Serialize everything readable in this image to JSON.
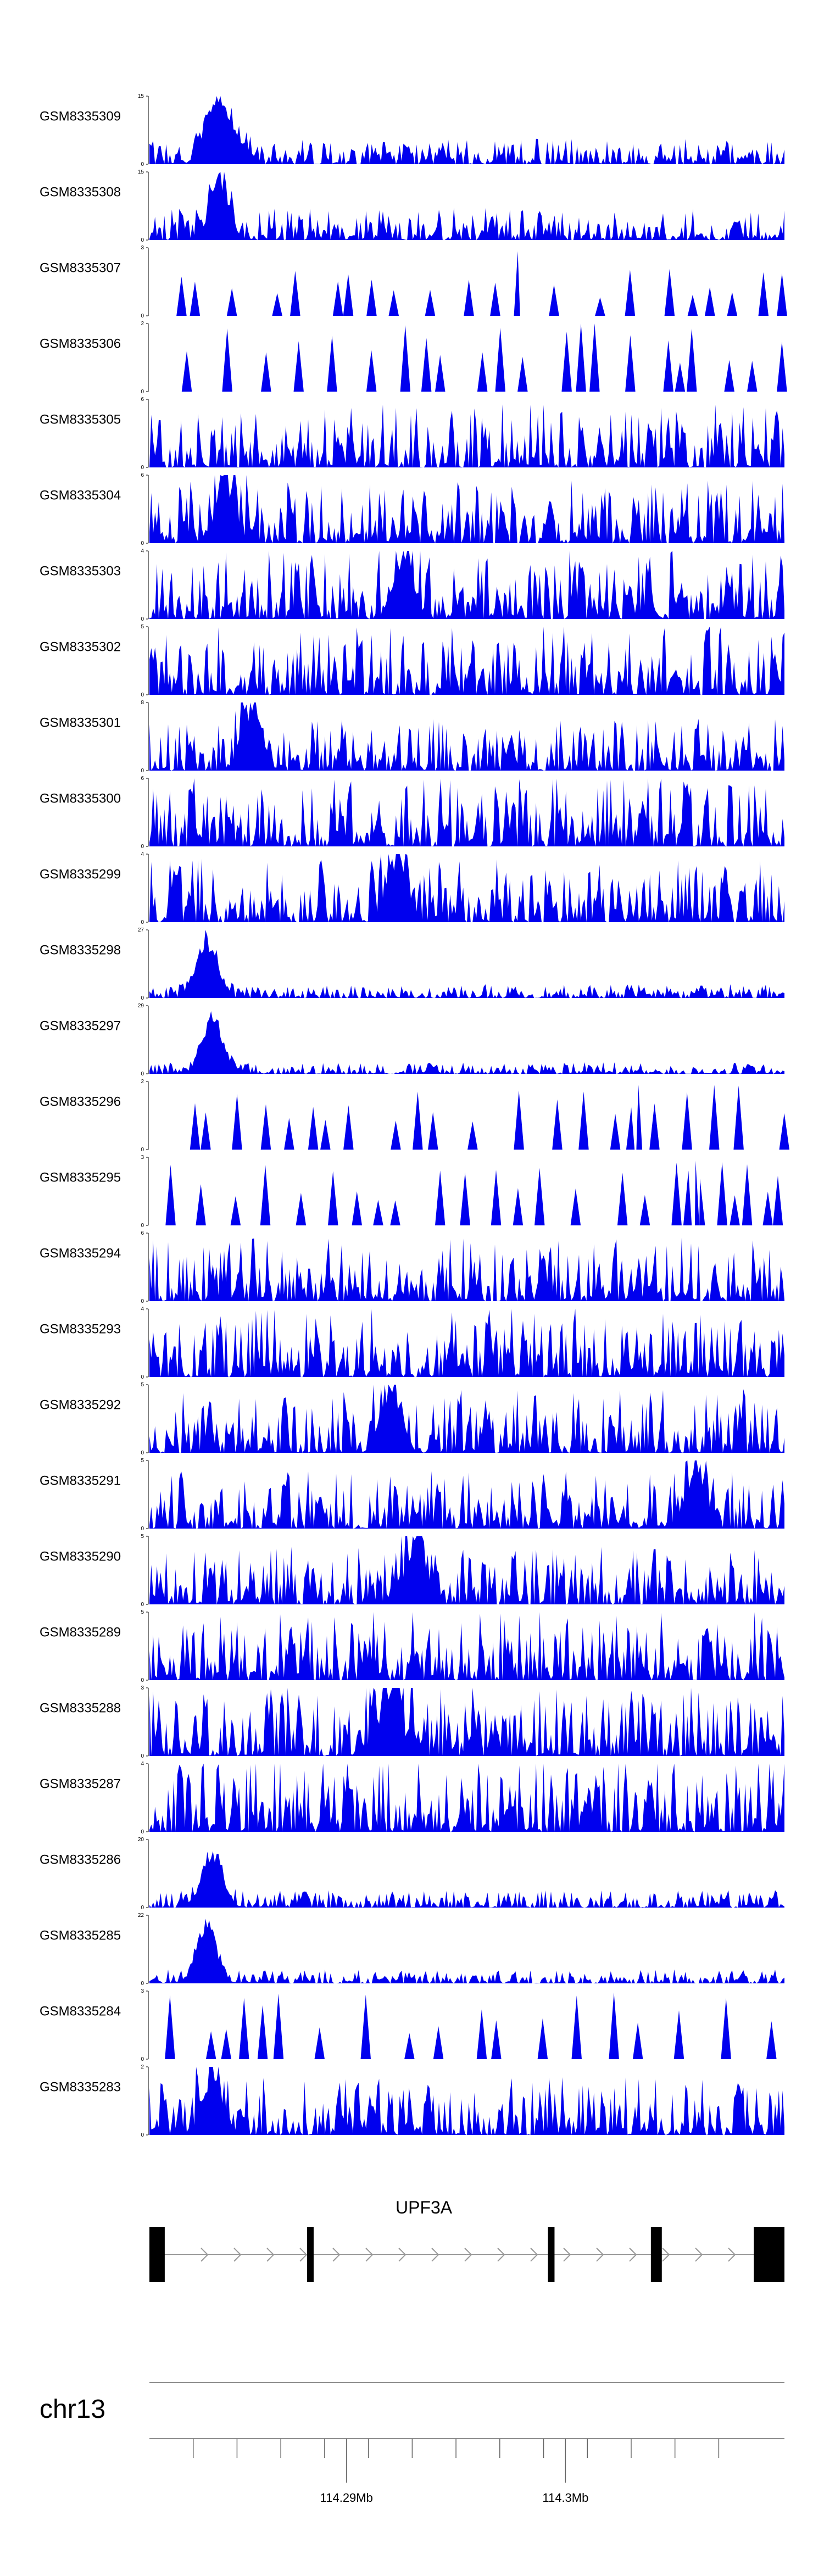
{
  "chart_data": {
    "type": "area",
    "fill_color": "#0000ee",
    "chromosome": "chr13",
    "gene": {
      "name": "UPF3A",
      "strand": "+",
      "start_pos": 114281000,
      "end_pos": 114310000,
      "exons": [
        [
          114281000,
          114281700
        ],
        [
          114288200,
          114288500
        ],
        [
          114299200,
          114299500
        ],
        [
          114303900,
          114304400
        ],
        [
          114308600,
          114310000
        ]
      ]
    },
    "x_range": [
      114281000,
      114310000
    ],
    "x_ticks": [
      {
        "pos": 114290000,
        "label": "114.29Mb"
      },
      {
        "pos": 114300000,
        "label": "114.3Mb"
      }
    ],
    "x_minor_ticks": [
      114283000,
      114285000,
      114287000,
      114289000,
      114291000,
      114293000,
      114295000,
      114297000,
      114299000,
      114301000,
      114303000,
      114305000,
      114307000
    ],
    "tracks": [
      {
        "name": "GSM8335309",
        "ymax": "15",
        "ymin": "0",
        "sparse": false,
        "peaks": [
          [
            0.1,
            0.85
          ],
          [
            0.13,
            0.5
          ]
        ],
        "base": 0.22,
        "seed": 11
      },
      {
        "name": "GSM8335308",
        "ymax": "15",
        "ymin": "0",
        "sparse": false,
        "peaks": [
          [
            0.11,
            0.8
          ]
        ],
        "base": 0.28,
        "seed": 12
      },
      {
        "name": "GSM8335307",
        "ymax": "3",
        "ymin": "0",
        "sparse": true,
        "peaks": [
          [
            0.58,
            0.95
          ]
        ],
        "base": 0.4,
        "seed": 13
      },
      {
        "name": "GSM8335306",
        "ymax": "2",
        "ymin": "0",
        "sparse": true,
        "peaks": [],
        "base": 0.6,
        "seed": 14
      },
      {
        "name": "GSM8335305",
        "ymax": "6",
        "ymin": "0",
        "sparse": false,
        "peaks": [],
        "base": 0.55,
        "seed": 15
      },
      {
        "name": "GSM8335304",
        "ymax": "6",
        "ymin": "0",
        "sparse": false,
        "peaks": [
          [
            0.12,
            0.85
          ]
        ],
        "base": 0.55,
        "seed": 16
      },
      {
        "name": "GSM8335303",
        "ymax": "4",
        "ymin": "0",
        "sparse": false,
        "peaks": [
          [
            0.4,
            0.9
          ]
        ],
        "base": 0.6,
        "seed": 17
      },
      {
        "name": "GSM8335302",
        "ymax": "5",
        "ymin": "0",
        "sparse": false,
        "peaks": [],
        "base": 0.6,
        "seed": 18
      },
      {
        "name": "GSM8335301",
        "ymax": "8",
        "ymin": "0",
        "sparse": false,
        "peaks": [
          [
            0.16,
            0.95
          ]
        ],
        "base": 0.45,
        "seed": 19
      },
      {
        "name": "GSM8335300",
        "ymax": "6",
        "ymin": "0",
        "sparse": false,
        "peaks": [],
        "base": 0.6,
        "seed": 20
      },
      {
        "name": "GSM8335299",
        "ymax": "4",
        "ymin": "0",
        "sparse": false,
        "peaks": [
          [
            0.39,
            0.95
          ]
        ],
        "base": 0.55,
        "seed": 21
      },
      {
        "name": "GSM8335298",
        "ymax": "27",
        "ymin": "0",
        "sparse": false,
        "peaks": [
          [
            0.09,
            0.9
          ]
        ],
        "base": 0.12,
        "seed": 22
      },
      {
        "name": "GSM8335297",
        "ymax": "29",
        "ymin": "0",
        "sparse": false,
        "peaks": [
          [
            0.1,
            0.9
          ]
        ],
        "base": 0.1,
        "seed": 23
      },
      {
        "name": "GSM8335296",
        "ymax": "2",
        "ymin": "0",
        "sparse": true,
        "peaks": [
          [
            0.77,
            0.95
          ]
        ],
        "base": 0.55,
        "seed": 24
      },
      {
        "name": "GSM8335295",
        "ymax": "3",
        "ymin": "0",
        "sparse": true,
        "peaks": [
          [
            0.86,
            0.95
          ]
        ],
        "base": 0.55,
        "seed": 25
      },
      {
        "name": "GSM8335294",
        "ymax": "6",
        "ymin": "0",
        "sparse": false,
        "peaks": [],
        "base": 0.55,
        "seed": 26
      },
      {
        "name": "GSM8335293",
        "ymax": "4",
        "ymin": "0",
        "sparse": false,
        "peaks": [],
        "base": 0.6,
        "seed": 27
      },
      {
        "name": "GSM8335292",
        "ymax": "5",
        "ymin": "0",
        "sparse": false,
        "peaks": [
          [
            0.38,
            0.95
          ]
        ],
        "base": 0.55,
        "seed": 28
      },
      {
        "name": "GSM8335291",
        "ymax": "5",
        "ymin": "0",
        "sparse": false,
        "peaks": [
          [
            0.86,
            0.95
          ]
        ],
        "base": 0.5,
        "seed": 29
      },
      {
        "name": "GSM8335290",
        "ymax": "5",
        "ymin": "0",
        "sparse": false,
        "peaks": [
          [
            0.42,
            0.95
          ]
        ],
        "base": 0.5,
        "seed": 30
      },
      {
        "name": "GSM8335289",
        "ymax": "5",
        "ymin": "0",
        "sparse": false,
        "peaks": [],
        "base": 0.6,
        "seed": 31
      },
      {
        "name": "GSM8335288",
        "ymax": "3",
        "ymin": "0",
        "sparse": false,
        "peaks": [
          [
            0.38,
            0.95
          ]
        ],
        "base": 0.6,
        "seed": 32
      },
      {
        "name": "GSM8335287",
        "ymax": "4",
        "ymin": "0",
        "sparse": false,
        "peaks": [],
        "base": 0.65,
        "seed": 33
      },
      {
        "name": "GSM8335286",
        "ymax": "20",
        "ymin": "0",
        "sparse": false,
        "peaks": [
          [
            0.1,
            0.85
          ]
        ],
        "base": 0.15,
        "seed": 34
      },
      {
        "name": "GSM8335285",
        "ymax": "22",
        "ymin": "0",
        "sparse": false,
        "peaks": [
          [
            0.09,
            0.9
          ]
        ],
        "base": 0.12,
        "seed": 35
      },
      {
        "name": "GSM8335284",
        "ymax": "3",
        "ymin": "0",
        "sparse": true,
        "peaks": [],
        "base": 0.6,
        "seed": 36
      },
      {
        "name": "GSM8335283",
        "ymax": "2",
        "ymin": "0",
        "sparse": false,
        "peaks": [
          [
            0.1,
            0.95
          ]
        ],
        "base": 0.5,
        "seed": 37
      }
    ]
  }
}
